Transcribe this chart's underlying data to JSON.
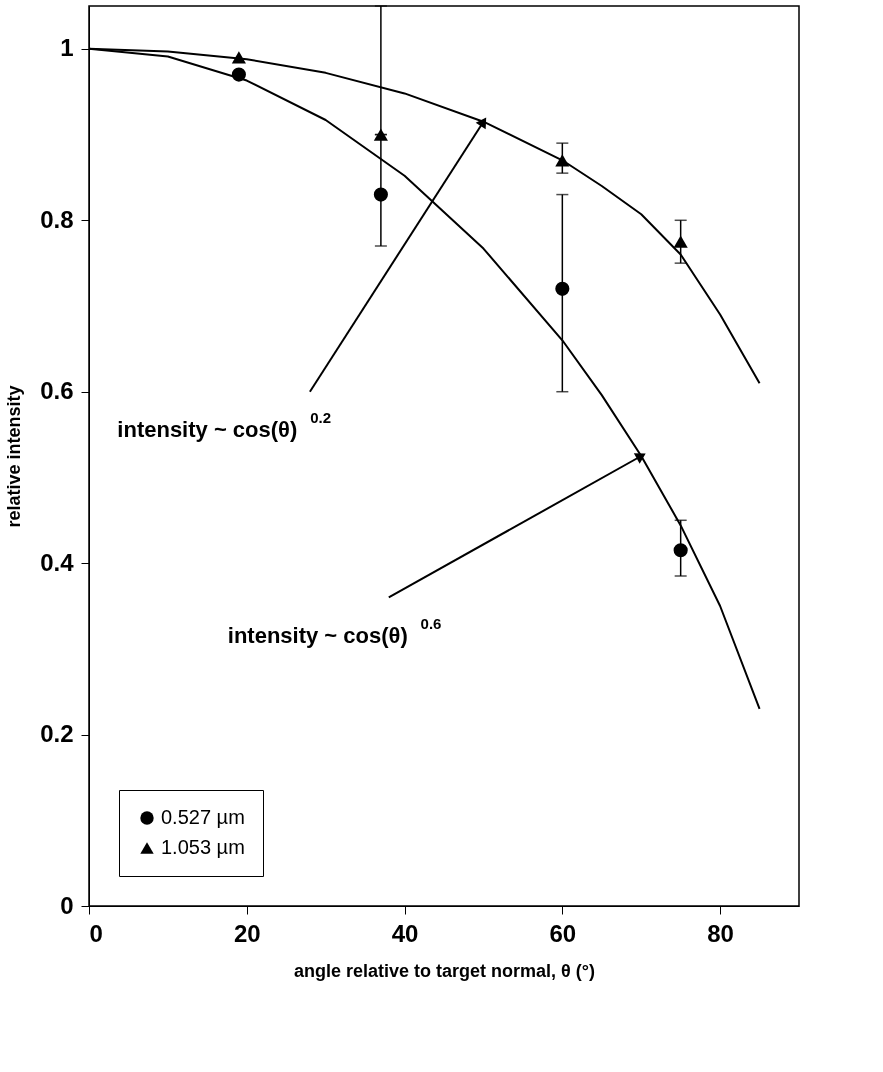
{
  "chart_data": {
    "type": "scatter",
    "xlabel": "angle relative to target normal, θ (°)",
    "ylabel": "relative intensity",
    "xlim": [
      0,
      90
    ],
    "xticks": [
      0,
      20,
      40,
      60,
      80
    ],
    "ylim": [
      0,
      1.05
    ],
    "yticks": [
      0,
      0.2,
      0.4,
      0.6,
      0.8,
      1
    ],
    "grid": false,
    "legend": "bottom left",
    "series": [
      {
        "name": "0.527 µm",
        "color": "#000000",
        "marker": "circle",
        "x": [
          19,
          37,
          60,
          75
        ],
        "values": [
          0.97,
          0.83,
          0.72,
          0.415
        ],
        "errors": [
          null,
          [
            0.77,
            0.9
          ],
          [
            0.6,
            0.83
          ],
          [
            0.385,
            0.45
          ]
        ]
      },
      {
        "name": "1.053 µm",
        "color": "#000000",
        "marker": "triangle",
        "x": [
          19,
          37,
          60,
          75
        ],
        "values": [
          0.99,
          0.9,
          0.87,
          0.775
        ],
        "errors": [
          null,
          [
            0.9,
            1.05
          ],
          [
            0.855,
            0.89
          ],
          [
            0.75,
            0.8
          ]
        ]
      },
      {
        "type": "line",
        "color": "#000000",
        "x": [
          0,
          10,
          20,
          30,
          40,
          50,
          60,
          65,
          70,
          75,
          80,
          85
        ],
        "values": [
          1,
          0.997,
          0.988,
          0.972,
          0.948,
          0.915,
          0.87,
          0.84,
          0.807,
          0.76,
          0.69,
          0.61
        ]
      },
      {
        "type": "line",
        "color": "#000000",
        "x": [
          0,
          10,
          20,
          30,
          40,
          50,
          60,
          65,
          70,
          75,
          80,
          85
        ],
        "values": [
          1,
          0.991,
          0.963,
          0.917,
          0.852,
          0.767,
          0.66,
          0.596,
          0.525,
          0.444,
          0.35,
          0.23
        ]
      }
    ],
    "annotations": [
      {
        "text": "intensity ~ cos(θ)$^{0.2}$",
        "x": 50,
        "y": 0.915
      },
      {
        "text": "intensity ~ cos(θ)$^{0.6}$",
        "x": 70,
        "y": 0.525
      }
    ]
  }
}
